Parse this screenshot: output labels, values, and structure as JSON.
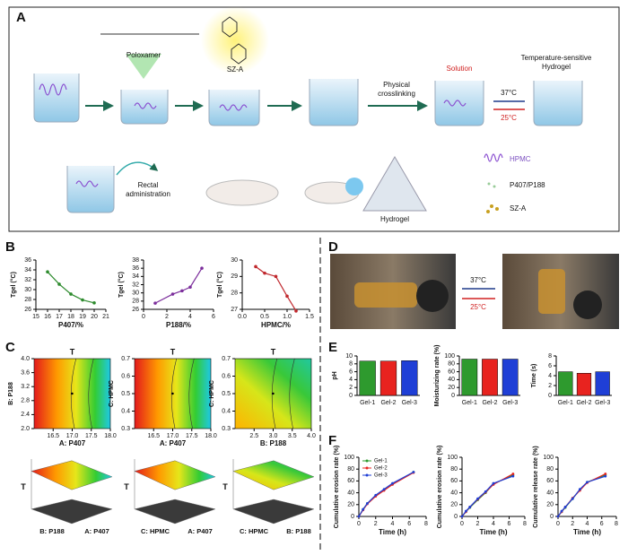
{
  "panel_labels": [
    "A",
    "B",
    "C",
    "D",
    "E",
    "F"
  ],
  "schematic": {
    "poloxamer": "Poloxamer",
    "sza": "SZ-A",
    "physical": "Physical",
    "crosslinking": "crosslinking",
    "solution": "Solution",
    "hydrogel_title": [
      "Temperature-sensitive",
      "Hydrogel"
    ],
    "heat": "37°C",
    "cool": "25°C",
    "rectal": [
      "Rectal",
      "administration"
    ],
    "hydrogel": "Hydrogel",
    "legend": [
      "HPMC",
      "P407/P188",
      "SZ-A"
    ]
  },
  "photo": {
    "heat": "37°C",
    "cool": "25°C"
  },
  "chart_data": [
    {
      "type": "line",
      "xlabel": "P407/%",
      "ylabel": "Tgel (°C)",
      "x": [
        16,
        17,
        18,
        19,
        20
      ],
      "values": [
        33.6,
        31.1,
        29.1,
        27.9,
        27.3
      ],
      "color": "#2e8b2e",
      "xlim": [
        15,
        21
      ],
      "xticks": [
        15,
        16,
        17,
        18,
        19,
        20,
        21
      ],
      "ylim": [
        26,
        36
      ],
      "yticks": [
        26,
        28,
        30,
        32,
        34,
        36
      ]
    },
    {
      "type": "line",
      "xlabel": "P188/%",
      "ylabel": "Tgel (°C)",
      "x": [
        1,
        2.5,
        3.3,
        4,
        5
      ],
      "values": [
        27.5,
        29.7,
        30.5,
        31.4,
        36
      ],
      "color": "#7b2d9b",
      "xlim": [
        0,
        6
      ],
      "xticks": [
        0,
        2,
        4,
        6
      ],
      "ylim": [
        26,
        38
      ],
      "yticks": [
        26,
        28,
        30,
        32,
        34,
        36,
        38
      ]
    },
    {
      "type": "line",
      "xlabel": "HPMC/%",
      "ylabel": "Tgel (°C)",
      "x": [
        0.3,
        0.5,
        0.75,
        1.0,
        1.2
      ],
      "values": [
        29.6,
        29.2,
        29.0,
        27.8,
        26.9
      ],
      "color": "#c0282d",
      "xlim": [
        0,
        1.5
      ],
      "xticks": [
        {
          "value": 0,
          "label": "0.0"
        },
        {
          "value": 0.5,
          "label": "0.5"
        },
        {
          "value": 1,
          "label": "1.0"
        },
        {
          "value": 1.5,
          "label": "1.5"
        }
      ],
      "ylim": [
        27,
        30
      ],
      "yticks": [
        27,
        28,
        29,
        30
      ]
    },
    {
      "type": "contour",
      "title": "T",
      "xlabel": "A: P407",
      "ylabel": "B: P188",
      "xlim": [
        16,
        18
      ],
      "xticks": [
        16.5,
        {
          "value": 17,
          "label": "17.0"
        },
        17.5,
        {
          "value": 18,
          "label": "18.0"
        }
      ],
      "ylim": [
        2,
        4
      ],
      "yticks": [
        {
          "value": 2,
          "label": "2.0"
        },
        2.4,
        2.8,
        3.2,
        3.6,
        {
          "value": 4,
          "label": "4.0"
        }
      ]
    },
    {
      "type": "contour",
      "title": "T",
      "xlabel": "A: P407",
      "ylabel": "C: HPMC",
      "xlim": [
        16,
        18
      ],
      "xticks": [
        16.5,
        {
          "value": 17,
          "label": "17.0"
        },
        17.5,
        {
          "value": 18,
          "label": "18.0"
        }
      ],
      "ylim": [
        0.3,
        0.7
      ],
      "yticks": [
        0.3,
        0.4,
        0.5,
        0.6,
        0.7
      ]
    },
    {
      "type": "contour",
      "title": "T",
      "xlabel": "B: P188",
      "ylabel": "C: HPMC",
      "xlim": [
        2,
        4
      ],
      "xticks": [
        2.5,
        {
          "value": 3,
          "label": "3.0"
        },
        3.5,
        {
          "value": 4,
          "label": "4.0"
        }
      ],
      "ylim": [
        0.3,
        0.7
      ],
      "yticks": [
        0.3,
        0.4,
        0.5,
        0.6,
        0.7
      ]
    },
    {
      "type": "surface",
      "zlabel": "T",
      "xlabel": "B: P188",
      "ylabel": "A: P407"
    },
    {
      "type": "surface",
      "zlabel": "T",
      "xlabel": "C: HPMC",
      "ylabel": "A: P407"
    },
    {
      "type": "surface",
      "zlabel": "T",
      "xlabel": "C: HPMC",
      "ylabel": "B: P188"
    },
    {
      "type": "bar",
      "ylabel": "pH",
      "categories": [
        "Gel-1",
        "Gel-2",
        "Gel-3"
      ],
      "values": [
        8.7,
        8.7,
        8.8
      ],
      "colors": [
        "#2e9a2e",
        "#e8231f",
        "#1f3fd6"
      ],
      "ylim": [
        0,
        10
      ],
      "yticks": [
        0,
        2,
        4,
        6,
        8,
        10
      ]
    },
    {
      "type": "bar",
      "ylabel": "Moisturizing rate (%)",
      "categories": [
        "Gel-1",
        "Gel-2",
        "Gel-3"
      ],
      "values": [
        92,
        92,
        92
      ],
      "colors": [
        "#2e9a2e",
        "#e8231f",
        "#1f3fd6"
      ],
      "ylim": [
        0,
        100
      ],
      "yticks": [
        0,
        20,
        40,
        60,
        80,
        100
      ]
    },
    {
      "type": "bar",
      "ylabel": "Time (s)",
      "categories": [
        "Gel-1",
        "Gel-2",
        "Gel-3"
      ],
      "values": [
        4.8,
        4.5,
        4.8
      ],
      "colors": [
        "#2e9a2e",
        "#e8231f",
        "#1f3fd6"
      ],
      "ylim": [
        0,
        8
      ],
      "yticks": [
        0,
        2,
        4,
        6,
        8
      ]
    },
    {
      "type": "line",
      "xlabel": "Time (h)",
      "ylabel": "Cumulative erosion rate (%)",
      "x": [
        0,
        0.5,
        1,
        2,
        3,
        4,
        6.5
      ],
      "series": [
        {
          "name": "Gel-1",
          "color": "#2e9a2e",
          "values": [
            0,
            12,
            22,
            35,
            45,
            55,
            75
          ]
        },
        {
          "name": "Gel-2",
          "color": "#e8231f",
          "values": [
            0,
            11,
            21,
            34,
            44,
            54,
            74
          ]
        },
        {
          "name": "Gel-3",
          "color": "#1f3fd6",
          "values": [
            0,
            12,
            22,
            36,
            46,
            56,
            75
          ]
        }
      ],
      "xlim": [
        0,
        8
      ],
      "xticks": [
        0,
        2,
        4,
        6,
        8
      ],
      "ylim": [
        0,
        100
      ],
      "yticks": [
        0,
        20,
        40,
        60,
        80,
        100
      ]
    },
    {
      "type": "line",
      "xlabel": "Time (h)",
      "ylabel": "Cumulative erosion rate (%)",
      "x": [
        0,
        0.5,
        1,
        2,
        3,
        4,
        6.5
      ],
      "series": [
        {
          "color": "#2e9a2e",
          "values": [
            0,
            8,
            15,
            28,
            40,
            55,
            70
          ]
        },
        {
          "color": "#e8231f",
          "values": [
            0,
            8,
            16,
            29,
            41,
            54,
            72
          ]
        },
        {
          "color": "#1f3fd6",
          "values": [
            0,
            9,
            16,
            30,
            42,
            56,
            68
          ]
        }
      ],
      "xlim": [
        0,
        8
      ],
      "xticks": [
        0,
        2,
        4,
        6,
        8
      ],
      "ylim": [
        0,
        100
      ],
      "yticks": [
        0,
        20,
        40,
        60,
        80,
        100
      ]
    },
    {
      "type": "line",
      "xlabel": "Time (h)",
      "ylabel": "Cumulative release rate (%)",
      "x": [
        0,
        0.5,
        1,
        2,
        3,
        4,
        6.5
      ],
      "series": [
        {
          "color": "#2e9a2e",
          "values": [
            0,
            8,
            15,
            30,
            45,
            58,
            70
          ]
        },
        {
          "color": "#e8231f",
          "values": [
            0,
            8,
            16,
            31,
            44,
            57,
            72
          ]
        },
        {
          "color": "#1f3fd6",
          "values": [
            0,
            9,
            16,
            30,
            46,
            58,
            68
          ]
        }
      ],
      "xlim": [
        0,
        8
      ],
      "xticks": [
        0,
        2,
        4,
        6,
        8
      ],
      "ylim": [
        0,
        100
      ],
      "yticks": [
        0,
        20,
        40,
        60,
        80,
        100
      ]
    }
  ]
}
